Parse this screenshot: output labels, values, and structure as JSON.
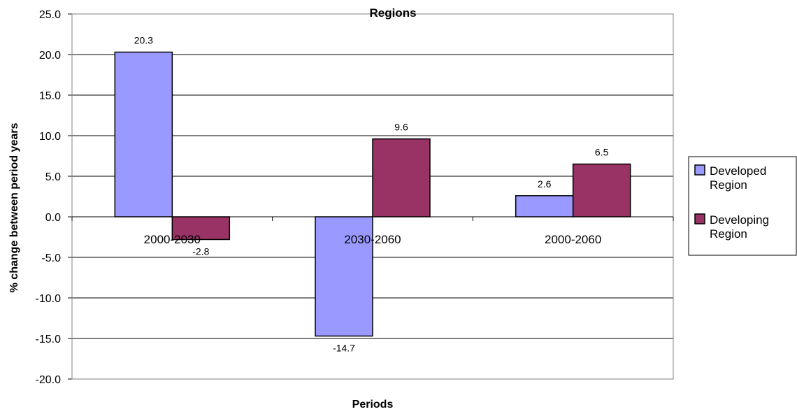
{
  "chart_data": {
    "type": "bar",
    "title": "Regions",
    "xlabel": "Periods",
    "ylabel": "% change between period years",
    "ylim": [
      -20,
      25
    ],
    "ytick_step": 5,
    "yticks": [
      "25.0",
      "20.0",
      "15.0",
      "10.0",
      "5.0",
      "0.0",
      "-5.0",
      "-10.0",
      "-15.0",
      "-20.0"
    ],
    "grid": true,
    "legend_position": "right",
    "categories": [
      "2000-2030",
      "2030-2060",
      "2000-2060"
    ],
    "series": [
      {
        "name": "Developed Region",
        "name_lines": [
          "Developed",
          "Region"
        ],
        "color": "#9999FF",
        "values": [
          20.3,
          -14.7,
          2.6
        ],
        "labels": [
          "20.3",
          "-14.7",
          "2.6"
        ]
      },
      {
        "name": "Developing Region",
        "name_lines": [
          "Developing",
          "Region"
        ],
        "color": "#993366",
        "values": [
          -2.8,
          9.6,
          6.5
        ],
        "labels": [
          "-2.8",
          "9.6",
          "6.5"
        ]
      }
    ]
  }
}
